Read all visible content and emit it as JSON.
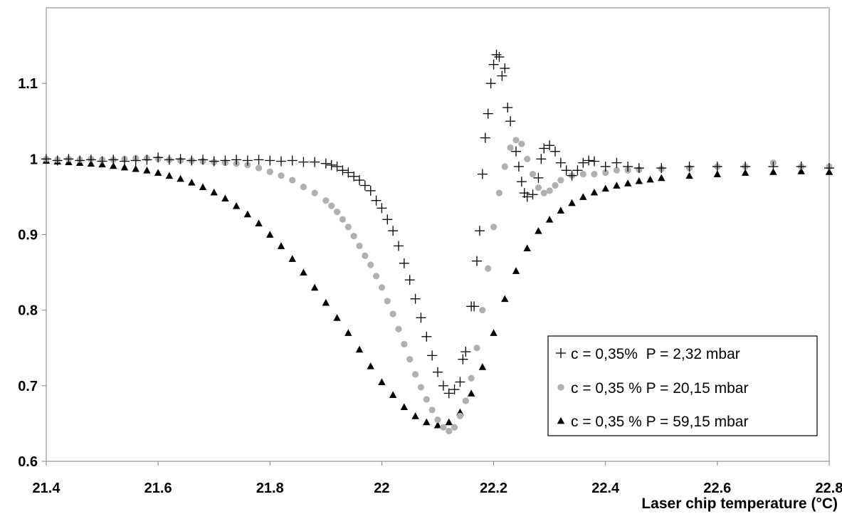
{
  "chart_data": {
    "type": "scatter",
    "title": "",
    "xlabel": "Laser chip temperature (°C)",
    "ylabel": "",
    "xlim": [
      21.4,
      22.8
    ],
    "ylim": [
      0.6,
      1.2
    ],
    "x_ticks": [
      "21.4",
      "21.6",
      "21.8",
      "22",
      "22.2",
      "22.4",
      "22.6",
      "22.8"
    ],
    "y_ticks": [
      "0.6",
      "0.7",
      "0.8",
      "0.9",
      "1",
      "1.1"
    ],
    "grid": false,
    "legend_position": "bottom-right",
    "series": [
      {
        "name": "c = 0,35%  P = 2,32 mbar",
        "marker": "cross",
        "color": "#000000",
        "points": [
          [
            21.4,
            1.0
          ],
          [
            21.42,
            0.998
          ],
          [
            21.44,
            1.0
          ],
          [
            21.46,
            0.998
          ],
          [
            21.48,
            0.999
          ],
          [
            21.5,
            0.997
          ],
          [
            21.52,
            0.999
          ],
          [
            21.54,
            0.997
          ],
          [
            21.56,
            0.998
          ],
          [
            21.58,
            0.999
          ],
          [
            21.6,
            1.002
          ],
          [
            21.62,
            0.999
          ],
          [
            21.64,
            1.0
          ],
          [
            21.66,
            0.998
          ],
          [
            21.68,
            0.999
          ],
          [
            21.7,
            0.997
          ],
          [
            21.72,
            0.998
          ],
          [
            21.74,
            0.999
          ],
          [
            21.76,
            0.998
          ],
          [
            21.78,
            0.999
          ],
          [
            21.8,
            0.998
          ],
          [
            21.82,
            0.997
          ],
          [
            21.84,
            0.998
          ],
          [
            21.86,
            0.996
          ],
          [
            21.88,
            0.996
          ],
          [
            21.9,
            0.994
          ],
          [
            21.91,
            0.992
          ],
          [
            21.92,
            0.99
          ],
          [
            21.93,
            0.985
          ],
          [
            21.94,
            0.982
          ],
          [
            21.95,
            0.977
          ],
          [
            21.96,
            0.972
          ],
          [
            21.97,
            0.965
          ],
          [
            21.98,
            0.958
          ],
          [
            21.99,
            0.945
          ],
          [
            22.0,
            0.935
          ],
          [
            22.01,
            0.92
          ],
          [
            22.02,
            0.905
          ],
          [
            22.03,
            0.885
          ],
          [
            22.04,
            0.862
          ],
          [
            22.05,
            0.84
          ],
          [
            22.06,
            0.815
          ],
          [
            22.07,
            0.79
          ],
          [
            22.08,
            0.765
          ],
          [
            22.09,
            0.74
          ],
          [
            22.1,
            0.718
          ],
          [
            22.11,
            0.7
          ],
          [
            22.12,
            0.69
          ],
          [
            22.13,
            0.695
          ],
          [
            22.14,
            0.705
          ],
          [
            22.145,
            0.735
          ],
          [
            22.15,
            0.745
          ],
          [
            22.16,
            0.805
          ],
          [
            22.165,
            0.805
          ],
          [
            22.17,
            0.865
          ],
          [
            22.175,
            0.905
          ],
          [
            22.18,
            0.98
          ],
          [
            22.185,
            1.028
          ],
          [
            22.19,
            1.06
          ],
          [
            22.195,
            1.1
          ],
          [
            22.2,
            1.125
          ],
          [
            22.205,
            1.138
          ],
          [
            22.21,
            1.135
          ],
          [
            22.215,
            1.11
          ],
          [
            22.22,
            1.12
          ],
          [
            22.225,
            1.068
          ],
          [
            22.23,
            1.05
          ],
          [
            22.24,
            1.01
          ],
          [
            22.245,
            0.99
          ],
          [
            22.25,
            0.97
          ],
          [
            22.255,
            0.955
          ],
          [
            22.26,
            0.95
          ],
          [
            22.27,
            0.953
          ],
          [
            22.28,
            0.975
          ],
          [
            22.285,
            1.0
          ],
          [
            22.29,
            1.014
          ],
          [
            22.3,
            1.018
          ],
          [
            22.31,
            1.01
          ],
          [
            22.32,
            0.995
          ],
          [
            22.33,
            0.985
          ],
          [
            22.34,
            0.978
          ],
          [
            22.35,
            0.985
          ],
          [
            22.36,
            0.995
          ],
          [
            22.37,
            0.998
          ],
          [
            22.38,
            0.997
          ],
          [
            22.4,
            0.99
          ],
          [
            22.42,
            0.995
          ],
          [
            22.44,
            0.99
          ],
          [
            22.46,
            0.988
          ],
          [
            22.5,
            0.988
          ],
          [
            22.55,
            0.99
          ],
          [
            22.6,
            0.99
          ],
          [
            22.65,
            0.99
          ],
          [
            22.7,
            0.99
          ],
          [
            22.75,
            0.99
          ],
          [
            22.8,
            0.988
          ]
        ]
      },
      {
        "name": "c = 0,35 % P = 20,15 mbar",
        "marker": "circle",
        "color": "#b0b0b0",
        "points": [
          [
            21.4,
            1.0
          ],
          [
            21.42,
            0.999
          ],
          [
            21.44,
            1.0
          ],
          [
            21.46,
            0.999
          ],
          [
            21.48,
            1.0
          ],
          [
            21.5,
            0.999
          ],
          [
            21.52,
            0.999
          ],
          [
            21.54,
            1.0
          ],
          [
            21.56,
            1.001
          ],
          [
            21.58,
            1.001
          ],
          [
            21.6,
            1.0
          ],
          [
            21.62,
            0.999
          ],
          [
            21.64,
            0.998
          ],
          [
            21.66,
            0.998
          ],
          [
            21.68,
            0.997
          ],
          [
            21.7,
            0.996
          ],
          [
            21.72,
            0.995
          ],
          [
            21.74,
            0.994
          ],
          [
            21.76,
            0.992
          ],
          [
            21.78,
            0.988
          ],
          [
            21.8,
            0.983
          ],
          [
            21.82,
            0.978
          ],
          [
            21.84,
            0.972
          ],
          [
            21.86,
            0.963
          ],
          [
            21.88,
            0.955
          ],
          [
            21.9,
            0.945
          ],
          [
            21.91,
            0.938
          ],
          [
            21.92,
            0.93
          ],
          [
            21.93,
            0.92
          ],
          [
            21.94,
            0.91
          ],
          [
            21.95,
            0.898
          ],
          [
            21.96,
            0.885
          ],
          [
            21.97,
            0.872
          ],
          [
            21.98,
            0.86
          ],
          [
            21.99,
            0.845
          ],
          [
            22.0,
            0.83
          ],
          [
            22.01,
            0.812
          ],
          [
            22.02,
            0.795
          ],
          [
            22.03,
            0.775
          ],
          [
            22.04,
            0.755
          ],
          [
            22.05,
            0.735
          ],
          [
            22.06,
            0.715
          ],
          [
            22.07,
            0.698
          ],
          [
            22.08,
            0.682
          ],
          [
            22.09,
            0.668
          ],
          [
            22.1,
            0.655
          ],
          [
            22.11,
            0.645
          ],
          [
            22.12,
            0.64
          ],
          [
            22.13,
            0.645
          ],
          [
            22.14,
            0.66
          ],
          [
            22.15,
            0.68
          ],
          [
            22.16,
            0.71
          ],
          [
            22.17,
            0.75
          ],
          [
            22.18,
            0.8
          ],
          [
            22.19,
            0.855
          ],
          [
            22.2,
            0.91
          ],
          [
            22.21,
            0.955
          ],
          [
            22.22,
            0.99
          ],
          [
            22.23,
            1.015
          ],
          [
            22.24,
            1.025
          ],
          [
            22.25,
            1.02
          ],
          [
            22.26,
            1.0
          ],
          [
            22.27,
            0.98
          ],
          [
            22.28,
            0.962
          ],
          [
            22.29,
            0.955
          ],
          [
            22.3,
            0.958
          ],
          [
            22.31,
            0.965
          ],
          [
            22.32,
            0.972
          ],
          [
            22.34,
            0.978
          ],
          [
            22.36,
            0.98
          ],
          [
            22.38,
            0.98
          ],
          [
            22.4,
            0.982
          ],
          [
            22.42,
            0.985
          ],
          [
            22.44,
            0.985
          ],
          [
            22.46,
            0.986
          ],
          [
            22.5,
            0.987
          ],
          [
            22.55,
            0.988
          ],
          [
            22.6,
            0.99
          ],
          [
            22.65,
            0.99
          ],
          [
            22.7,
            0.995
          ],
          [
            22.75,
            0.99
          ],
          [
            22.8,
            0.99
          ]
        ]
      },
      {
        "name": "c = 0,35 % P = 59,15 mbar",
        "marker": "triangle",
        "color": "#000000",
        "points": [
          [
            21.4,
            0.998
          ],
          [
            21.42,
            0.997
          ],
          [
            21.44,
            0.996
          ],
          [
            21.46,
            0.995
          ],
          [
            21.48,
            0.994
          ],
          [
            21.5,
            0.993
          ],
          [
            21.52,
            0.991
          ],
          [
            21.54,
            0.989
          ],
          [
            21.56,
            0.987
          ],
          [
            21.58,
            0.985
          ],
          [
            21.6,
            0.982
          ],
          [
            21.62,
            0.978
          ],
          [
            21.64,
            0.974
          ],
          [
            21.66,
            0.969
          ],
          [
            21.68,
            0.963
          ],
          [
            21.7,
            0.956
          ],
          [
            21.72,
            0.948
          ],
          [
            21.74,
            0.938
          ],
          [
            21.76,
            0.927
          ],
          [
            21.78,
            0.915
          ],
          [
            21.8,
            0.9
          ],
          [
            21.82,
            0.885
          ],
          [
            21.84,
            0.868
          ],
          [
            21.86,
            0.85
          ],
          [
            21.88,
            0.83
          ],
          [
            21.9,
            0.81
          ],
          [
            21.92,
            0.79
          ],
          [
            21.94,
            0.77
          ],
          [
            21.96,
            0.748
          ],
          [
            21.98,
            0.726
          ],
          [
            22.0,
            0.705
          ],
          [
            22.02,
            0.688
          ],
          [
            22.04,
            0.672
          ],
          [
            22.06,
            0.66
          ],
          [
            22.08,
            0.652
          ],
          [
            22.1,
            0.648
          ],
          [
            22.12,
            0.652
          ],
          [
            22.14,
            0.665
          ],
          [
            22.16,
            0.69
          ],
          [
            22.18,
            0.725
          ],
          [
            22.2,
            0.77
          ],
          [
            22.22,
            0.815
          ],
          [
            22.24,
            0.852
          ],
          [
            22.26,
            0.882
          ],
          [
            22.28,
            0.905
          ],
          [
            22.3,
            0.92
          ],
          [
            22.32,
            0.932
          ],
          [
            22.34,
            0.942
          ],
          [
            22.36,
            0.95
          ],
          [
            22.38,
            0.956
          ],
          [
            22.4,
            0.961
          ],
          [
            22.42,
            0.965
          ],
          [
            22.44,
            0.968
          ],
          [
            22.46,
            0.971
          ],
          [
            22.48,
            0.973
          ],
          [
            22.5,
            0.975
          ],
          [
            22.55,
            0.978
          ],
          [
            22.6,
            0.98
          ],
          [
            22.65,
            0.982
          ],
          [
            22.7,
            0.983
          ],
          [
            22.75,
            0.984
          ],
          [
            22.8,
            0.983
          ]
        ]
      }
    ]
  }
}
